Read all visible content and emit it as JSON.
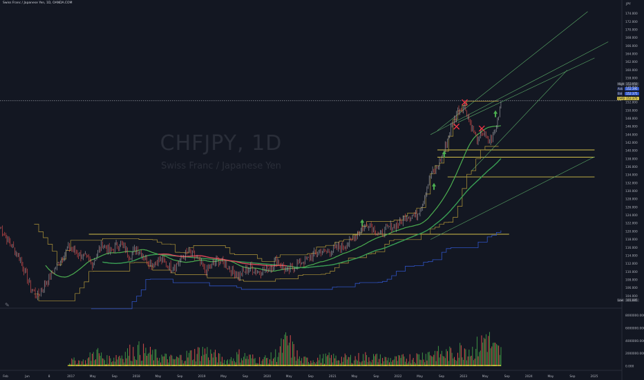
{
  "header": {
    "title": "Swiss Franc / Japanese Yen, 1D, OANDA.COM"
  },
  "watermark": {
    "symbol": "CHFJPY, 1D",
    "description": "Swiss Franc / Japanese Yen"
  },
  "price_scale": {
    "currency": "JPY",
    "high_label": "High",
    "high_value": "153.950",
    "ask_label": "Ask",
    "ask_value": "152.395",
    "bid_label": "Bid",
    "bid_value": "152.375",
    "last_label": "CHFJPY",
    "last_value": "152.375",
    "low_label": "Low",
    "low_value": "101.885"
  },
  "colors": {
    "background": "#131722",
    "up": "#26a69a",
    "down": "#ef5350",
    "yellow": "#d4c24a",
    "green_line": "#4caf50",
    "blue_line": "#2f54c7"
  },
  "chart_data": [
    {
      "type": "line",
      "name": "price",
      "x_axis_ticks": [
        "Feb",
        "Jun",
        "8",
        "2017",
        "May",
        "Sep",
        "2018",
        "May",
        "Sep",
        "2019",
        "May",
        "Sep",
        "2020",
        "May",
        "Sep",
        "2021",
        "May",
        "Sep",
        "2022",
        "May",
        "Sep",
        "2023",
        "May",
        "Sep",
        "2024",
        "May",
        "Sep",
        "2025"
      ],
      "y_axis_ticks": [
        "174.000",
        "172.000",
        "170.000",
        "168.000",
        "166.000",
        "164.000",
        "162.000",
        "160.000",
        "158.000",
        "156.000",
        "154.000",
        "152.000",
        "150.000",
        "148.000",
        "146.000",
        "144.000",
        "142.000",
        "140.000",
        "138.000",
        "136.000",
        "134.000",
        "132.000",
        "130.000",
        "128.000",
        "126.000",
        "124.000",
        "122.000",
        "120.000",
        "118.000",
        "116.000",
        "114.000",
        "112.000",
        "110.000",
        "108.000",
        "106.000",
        "104.000"
      ],
      "ylim": [
        102,
        176
      ],
      "xlim": [
        2016.0,
        2025.1
      ],
      "close": [
        [
          2016.0,
          121
        ],
        [
          2016.15,
          117
        ],
        [
          2016.3,
          113
        ],
        [
          2016.45,
          106
        ],
        [
          2016.55,
          104
        ],
        [
          2016.7,
          108
        ],
        [
          2016.85,
          112
        ],
        [
          2017.0,
          116
        ],
        [
          2017.2,
          114
        ],
        [
          2017.35,
          112
        ],
        [
          2017.5,
          117
        ],
        [
          2017.6,
          115
        ],
        [
          2017.75,
          117
        ],
        [
          2017.9,
          114
        ],
        [
          2018.0,
          116
        ],
        [
          2018.2,
          112
        ],
        [
          2018.35,
          113
        ],
        [
          2018.5,
          111
        ],
        [
          2018.6,
          112
        ],
        [
          2018.75,
          115
        ],
        [
          2018.9,
          113
        ],
        [
          2019.0,
          110
        ],
        [
          2019.2,
          113
        ],
        [
          2019.35,
          111
        ],
        [
          2019.5,
          109
        ],
        [
          2019.65,
          111
        ],
        [
          2019.8,
          110
        ],
        [
          2019.95,
          111
        ],
        [
          2020.05,
          113
        ],
        [
          2020.2,
          110
        ],
        [
          2020.35,
          112
        ],
        [
          2020.5,
          113
        ],
        [
          2020.65,
          115
        ],
        [
          2020.8,
          115
        ],
        [
          2020.95,
          116
        ],
        [
          2021.1,
          117
        ],
        [
          2021.25,
          120
        ],
        [
          2021.4,
          122
        ],
        [
          2021.55,
          119
        ],
        [
          2021.7,
          121
        ],
        [
          2021.85,
          122
        ],
        [
          2021.95,
          124
        ],
        [
          2022.1,
          124
        ],
        [
          2022.2,
          128
        ],
        [
          2022.3,
          134
        ],
        [
          2022.4,
          136
        ],
        [
          2022.5,
          140
        ],
        [
          2022.6,
          146
        ],
        [
          2022.7,
          150
        ],
        [
          2022.8,
          151
        ],
        [
          2022.9,
          146
        ],
        [
          2023.0,
          142
        ],
        [
          2023.05,
          145
        ],
        [
          2023.15,
          142
        ],
        [
          2023.25,
          145
        ],
        [
          2023.33,
          152.4
        ]
      ]
    },
    {
      "type": "bar",
      "name": "volume",
      "y_axis_ticks": [
        "8000000.000",
        "6000000.000",
        "4000000.000",
        "2000000.000",
        "0.000"
      ],
      "ylim": [
        0,
        8500000
      ],
      "values": [
        [
          2016.3,
          900000
        ],
        [
          2016.8,
          600000
        ],
        [
          2017.1,
          1300000
        ],
        [
          2017.25,
          1100000
        ],
        [
          2017.4,
          3400000
        ],
        [
          2017.55,
          1500000
        ],
        [
          2018.0,
          3800000
        ],
        [
          2018.3,
          2400000
        ],
        [
          2018.55,
          1600000
        ],
        [
          2018.8,
          2800000
        ],
        [
          2019.0,
          3600000
        ],
        [
          2019.3,
          1200000
        ],
        [
          2019.5,
          2600000
        ],
        [
          2019.8,
          1500000
        ],
        [
          2020.0,
          2100000
        ],
        [
          2020.2,
          5700000
        ],
        [
          2020.4,
          1400000
        ],
        [
          2020.6,
          1600000
        ],
        [
          2020.8,
          2000000
        ],
        [
          2021.0,
          1800000
        ],
        [
          2021.2,
          1900000
        ],
        [
          2021.4,
          2300000
        ],
        [
          2021.6,
          1700000
        ],
        [
          2021.8,
          1600000
        ],
        [
          2022.1,
          2200000
        ],
        [
          2022.3,
          3100000
        ],
        [
          2022.5,
          2800000
        ],
        [
          2022.65,
          3000000
        ],
        [
          2022.8,
          4500000
        ],
        [
          2022.92,
          3600000
        ],
        [
          2023.05,
          5300000
        ],
        [
          2023.12,
          7600000
        ],
        [
          2023.2,
          4200000
        ],
        [
          2023.3,
          3600000
        ]
      ]
    }
  ]
}
